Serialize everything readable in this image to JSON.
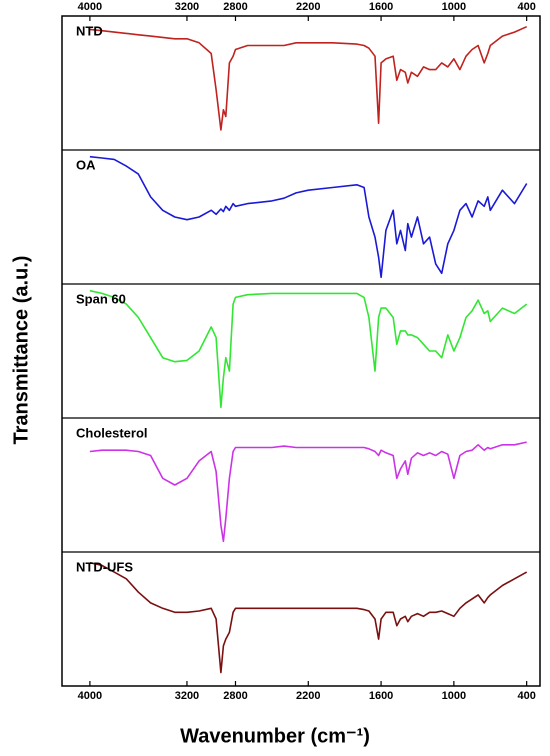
{
  "chart_data": {
    "type": "line",
    "subplots": true,
    "xlabel": "Wavenumber (cm⁻¹)",
    "ylabel": "Transmittance (a.u.)",
    "xlim": [
      4230,
      290
    ],
    "xticks": [
      4000,
      3200,
      2800,
      2200,
      1600,
      1000,
      400
    ],
    "ylim": [
      0,
      100
    ],
    "x": [
      4000,
      3900,
      3800,
      3700,
      3600,
      3500,
      3400,
      3300,
      3200,
      3100,
      3000,
      2960,
      2920,
      2900,
      2880,
      2850,
      2820,
      2800,
      2700,
      2500,
      2400,
      2300,
      2200,
      2000,
      1800,
      1740,
      1700,
      1650,
      1620,
      1600,
      1560,
      1500,
      1470,
      1440,
      1400,
      1380,
      1350,
      1300,
      1250,
      1200,
      1150,
      1100,
      1050,
      1000,
      950,
      900,
      850,
      800,
      750,
      720,
      700,
      600,
      500,
      400
    ],
    "series": [
      {
        "name": "NTD",
        "color": "#c0221f",
        "values": [
          90,
          89,
          88,
          87,
          86,
          85,
          84,
          83,
          83,
          80,
          72,
          45,
          15,
          30,
          25,
          65,
          70,
          75,
          78,
          78,
          78,
          80,
          80,
          80,
          79,
          78,
          76,
          70,
          20,
          65,
          68,
          70,
          52,
          60,
          58,
          50,
          58,
          55,
          62,
          60,
          60,
          65,
          62,
          68,
          60,
          70,
          75,
          78,
          65,
          72,
          78,
          85,
          88,
          92
        ]
      },
      {
        "name": "OA",
        "color": "#1a1ad6",
        "values": [
          95,
          94,
          93,
          88,
          82,
          65,
          55,
          50,
          48,
          50,
          55,
          52,
          56,
          54,
          58,
          55,
          60,
          58,
          60,
          62,
          64,
          68,
          70,
          72,
          74,
          72,
          50,
          35,
          20,
          5,
          40,
          55,
          30,
          40,
          25,
          45,
          35,
          50,
          30,
          35,
          15,
          8,
          30,
          40,
          55,
          60,
          50,
          62,
          58,
          65,
          55,
          70,
          60,
          75
        ]
      },
      {
        "name": "Span 60",
        "color": "#33e633",
        "values": [
          95,
          93,
          90,
          85,
          75,
          60,
          45,
          42,
          43,
          50,
          68,
          60,
          8,
          30,
          45,
          35,
          85,
          90,
          92,
          93,
          93,
          93,
          93,
          93,
          93,
          90,
          75,
          35,
          75,
          82,
          82,
          75,
          55,
          65,
          65,
          62,
          62,
          60,
          55,
          50,
          50,
          45,
          62,
          50,
          60,
          75,
          80,
          88,
          78,
          80,
          72,
          82,
          78,
          85
        ]
      },
      {
        "name": "Cholesterol",
        "color": "#cc33e6",
        "values": [
          75,
          76,
          76,
          76,
          75,
          72,
          55,
          50,
          55,
          68,
          75,
          60,
          20,
          8,
          25,
          55,
          75,
          78,
          78,
          78,
          79,
          78,
          78,
          78,
          78,
          78,
          77,
          75,
          72,
          76,
          74,
          72,
          55,
          62,
          68,
          58,
          70,
          74,
          72,
          74,
          72,
          75,
          73,
          55,
          72,
          75,
          76,
          80,
          76,
          78,
          77,
          80,
          80,
          82
        ]
      },
      {
        "name": "NTD-UFS",
        "color": "#7a1010",
        "values": [
          92,
          90,
          85,
          80,
          70,
          62,
          58,
          55,
          55,
          56,
          58,
          50,
          10,
          30,
          35,
          40,
          55,
          58,
          58,
          58,
          58,
          58,
          58,
          58,
          58,
          57,
          56,
          50,
          35,
          50,
          55,
          55,
          45,
          50,
          52,
          48,
          52,
          54,
          52,
          55,
          55,
          56,
          54,
          52,
          58,
          62,
          65,
          68,
          62,
          66,
          68,
          75,
          80,
          85
        ]
      }
    ]
  }
}
